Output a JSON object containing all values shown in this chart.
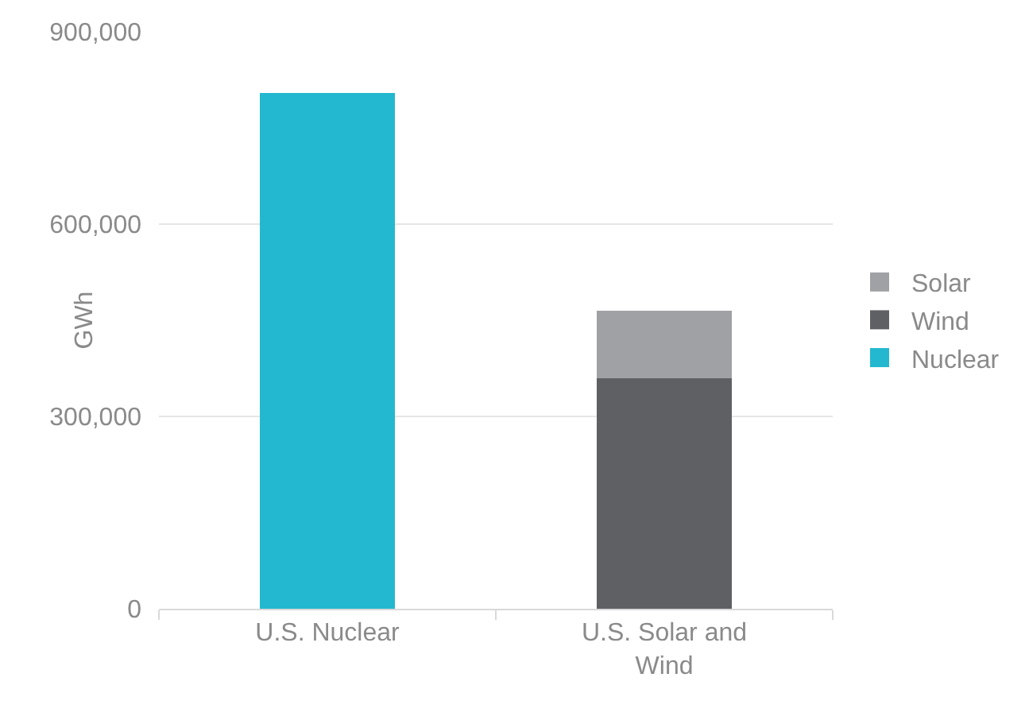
{
  "chart_data": {
    "type": "bar",
    "stacked": true,
    "ylabel": "GWh",
    "categories": [
      "U.S. Nuclear",
      "U.S. Solar and Wind"
    ],
    "series": [
      {
        "name": "Nuclear",
        "color": "#23b8d0",
        "values": [
          805000,
          null
        ]
      },
      {
        "name": "Wind",
        "color": "#5f6064",
        "values": [
          null,
          360000
        ]
      },
      {
        "name": "Solar",
        "color": "#a0a1a5",
        "values": [
          null,
          105000
        ]
      }
    ],
    "ylim": [
      0,
      900000
    ],
    "yticks": [
      {
        "value": 0,
        "label": "0"
      },
      {
        "value": 300000,
        "label": "300,000"
      },
      {
        "value": 600000,
        "label": "600,000"
      },
      {
        "value": 900000,
        "label": "900,000"
      }
    ],
    "grid": "y",
    "legend": "right"
  }
}
